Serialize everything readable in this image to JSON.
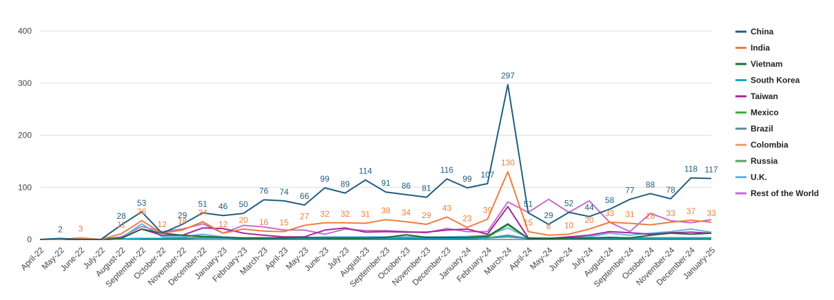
{
  "chart_data": {
    "type": "line",
    "title": "",
    "xlabel": "",
    "ylabel": "",
    "ylim": [
      0,
      400
    ],
    "yticks": [
      0,
      100,
      200,
      300,
      400
    ],
    "grid": true,
    "legend_position": "right",
    "categories": [
      "April-22",
      "May-22",
      "June-22",
      "July-22",
      "August-22",
      "September-22",
      "October-22",
      "November-22",
      "December-22",
      "January-23",
      "February-23",
      "March-23",
      "April-23",
      "May-23",
      "June-23",
      "July-23",
      "August-23",
      "September-23",
      "October-23",
      "November-23",
      "December-23",
      "January-24",
      "February-24",
      "March-24",
      "April-24",
      "May-24",
      "June-24",
      "July-24",
      "August-24",
      "September-24",
      "October-24",
      "November-24",
      "December-24",
      "January-25"
    ],
    "series": [
      {
        "name": "China",
        "color": "#1f5d80",
        "values": [
          0,
          2,
          0,
          0,
          28,
          53,
          12,
          29,
          51,
          46,
          50,
          76,
          74,
          66,
          99,
          89,
          114,
          91,
          86,
          81,
          116,
          99,
          107,
          297,
          51,
          29,
          52,
          44,
          58,
          77,
          88,
          78,
          118,
          117
        ]
      },
      {
        "name": "India",
        "color": "#ee7d3c",
        "values": [
          0,
          0,
          3,
          0,
          11,
          36,
          12,
          18,
          34,
          12,
          20,
          16,
          15,
          27,
          32,
          32,
          31,
          38,
          34,
          29,
          43,
          23,
          39,
          130,
          15,
          8,
          10,
          20,
          33,
          31,
          28,
          33,
          37,
          33
        ]
      },
      {
        "name": "Vietnam",
        "color": "#1e6b35",
        "values": [
          0,
          0,
          0,
          0,
          2,
          20,
          12,
          8,
          6,
          4,
          3,
          3,
          3,
          4,
          3,
          3,
          3,
          4,
          9,
          4,
          4,
          4,
          6,
          30,
          2,
          2,
          3,
          3,
          4,
          3,
          8,
          12,
          10,
          12
        ]
      },
      {
        "name": "South Korea",
        "color": "#14a9c4",
        "values": [
          0,
          0,
          0,
          0,
          1,
          2,
          2,
          3,
          3,
          3,
          2,
          2,
          2,
          2,
          2,
          2,
          2,
          2,
          2,
          2,
          2,
          2,
          3,
          5,
          2,
          2,
          2,
          2,
          2,
          2,
          2,
          2,
          2,
          2
        ]
      },
      {
        "name": "Taiwan",
        "color": "#a6259b",
        "values": [
          0,
          0,
          0,
          0,
          3,
          20,
          8,
          8,
          22,
          21,
          12,
          8,
          5,
          5,
          18,
          22,
          14,
          15,
          14,
          14,
          18,
          20,
          10,
          63,
          3,
          2,
          5,
          8,
          15,
          13,
          10,
          13,
          14,
          12
        ]
      },
      {
        "name": "Mexico",
        "color": "#3fb043",
        "values": [
          0,
          0,
          0,
          0,
          1,
          2,
          2,
          3,
          4,
          3,
          2,
          2,
          2,
          2,
          3,
          3,
          3,
          3,
          3,
          3,
          3,
          3,
          4,
          28,
          2,
          2,
          2,
          2,
          3,
          3,
          3,
          3,
          3,
          3
        ]
      },
      {
        "name": "Brazil",
        "color": "#5a8a9c",
        "values": [
          0,
          0,
          0,
          0,
          1,
          2,
          2,
          2,
          3,
          3,
          2,
          2,
          2,
          2,
          2,
          2,
          2,
          2,
          2,
          2,
          2,
          2,
          3,
          8,
          2,
          2,
          2,
          2,
          3,
          3,
          3,
          3,
          3,
          3
        ]
      },
      {
        "name": "Colombia",
        "color": "#f0a070",
        "values": [
          0,
          0,
          0,
          0,
          1,
          2,
          2,
          2,
          3,
          3,
          2,
          2,
          2,
          2,
          2,
          2,
          2,
          2,
          2,
          2,
          2,
          2,
          3,
          6,
          2,
          2,
          2,
          2,
          3,
          3,
          3,
          3,
          3,
          3
        ]
      },
      {
        "name": "Russia",
        "color": "#5c9e62",
        "values": [
          0,
          0,
          0,
          0,
          1,
          2,
          2,
          2,
          3,
          3,
          2,
          2,
          2,
          2,
          2,
          2,
          2,
          2,
          2,
          2,
          2,
          2,
          3,
          5,
          2,
          2,
          2,
          2,
          3,
          3,
          3,
          3,
          3,
          3
        ]
      },
      {
        "name": "U.K.",
        "color": "#63b8e3",
        "values": [
          0,
          0,
          0,
          0,
          3,
          30,
          5,
          5,
          10,
          5,
          3,
          3,
          3,
          3,
          5,
          5,
          5,
          5,
          5,
          5,
          5,
          6,
          8,
          22,
          3,
          3,
          4,
          5,
          12,
          8,
          12,
          15,
          20,
          14
        ]
      },
      {
        "name": "Rest of the World",
        "color": "#c46dc9",
        "values": [
          0,
          0,
          0,
          0,
          5,
          25,
          15,
          20,
          30,
          12,
          27,
          24,
          18,
          18,
          10,
          20,
          17,
          17,
          15,
          13,
          21,
          15,
          15,
          72,
          52,
          77,
          52,
          74,
          33,
          15,
          50,
          36,
          32,
          38
        ]
      }
    ],
    "data_labels": [
      {
        "series": "China",
        "points": [
          [
            1,
            "2"
          ],
          [
            4,
            "28"
          ],
          [
            5,
            "53"
          ],
          [
            7,
            "29"
          ],
          [
            8,
            "51"
          ],
          [
            9,
            "46"
          ],
          [
            10,
            "50"
          ],
          [
            11,
            "76"
          ],
          [
            12,
            "74"
          ],
          [
            13,
            "66"
          ],
          [
            14,
            "99"
          ],
          [
            15,
            "89"
          ],
          [
            16,
            "114"
          ],
          [
            17,
            "91"
          ],
          [
            18,
            "86"
          ],
          [
            19,
            "81"
          ],
          [
            20,
            "116"
          ],
          [
            21,
            "99"
          ],
          [
            22,
            "107"
          ],
          [
            23,
            "297"
          ],
          [
            24,
            "51"
          ],
          [
            25,
            "29"
          ],
          [
            26,
            "52"
          ],
          [
            27,
            "44"
          ],
          [
            28,
            "58"
          ],
          [
            29,
            "77"
          ],
          [
            30,
            "88"
          ],
          [
            31,
            "78"
          ],
          [
            32,
            "118"
          ],
          [
            33,
            "117"
          ]
        ]
      },
      {
        "series": "India",
        "points": [
          [
            2,
            "3"
          ],
          [
            4,
            "11"
          ],
          [
            5,
            "36"
          ],
          [
            6,
            "12"
          ],
          [
            7,
            "18"
          ],
          [
            8,
            "34"
          ],
          [
            9,
            "12"
          ],
          [
            10,
            "20"
          ],
          [
            11,
            "16"
          ],
          [
            12,
            "15"
          ],
          [
            13,
            "27"
          ],
          [
            14,
            "32"
          ],
          [
            15,
            "32"
          ],
          [
            16,
            "31"
          ],
          [
            17,
            "38"
          ],
          [
            18,
            "34"
          ],
          [
            19,
            "29"
          ],
          [
            20,
            "43"
          ],
          [
            21,
            "23"
          ],
          [
            22,
            "39"
          ],
          [
            23,
            "130"
          ],
          [
            24,
            "15"
          ],
          [
            25,
            "8"
          ],
          [
            26,
            "10"
          ],
          [
            27,
            "20"
          ],
          [
            28,
            "33"
          ],
          [
            29,
            "31"
          ],
          [
            30,
            "28"
          ],
          [
            31,
            "33"
          ],
          [
            32,
            "37"
          ],
          [
            33,
            "33"
          ]
        ]
      }
    ]
  }
}
